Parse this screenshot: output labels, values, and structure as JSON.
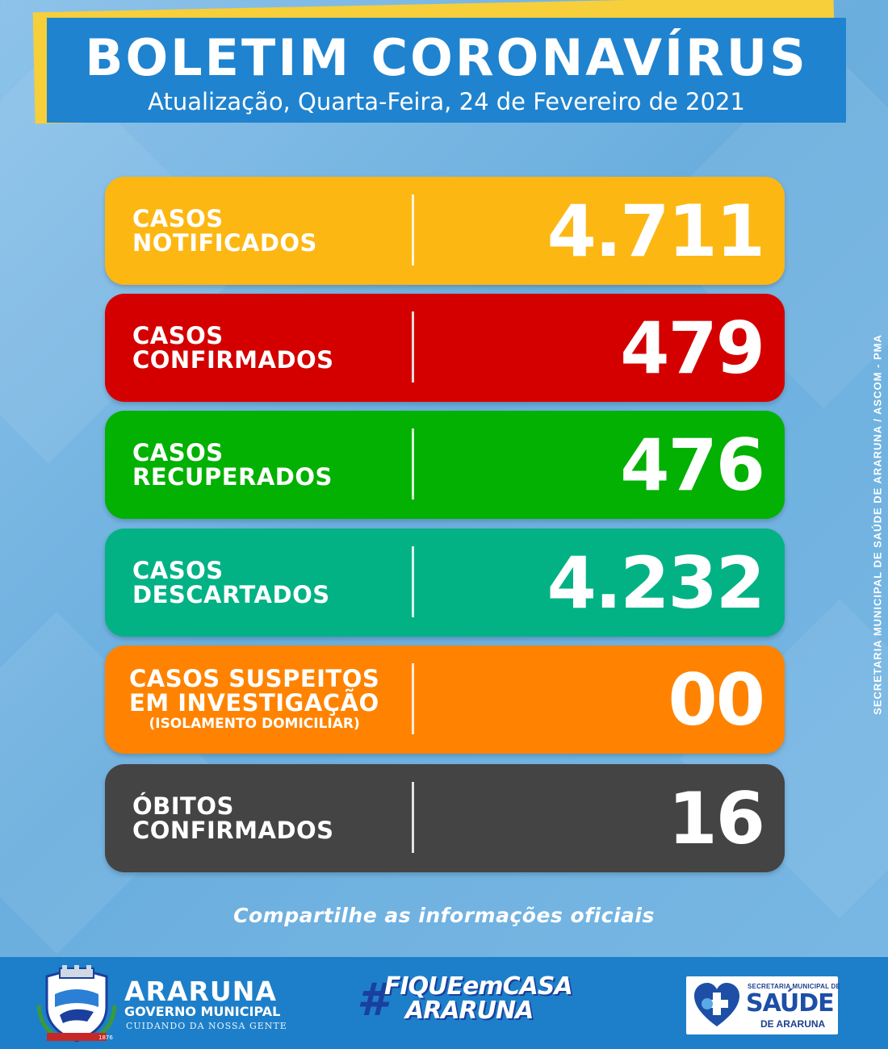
{
  "header": {
    "title": "BOLETIM CORONAVÍRUS",
    "subtitle": "Atualização, Quarta-Feira, 24 de Fevereiro de 2021"
  },
  "cards": [
    {
      "label_line1": "CASOS",
      "label_line2": "NOTIFICADOS",
      "note": "",
      "value": "4.711",
      "color": "#fdb713"
    },
    {
      "label_line1": "CASOS",
      "label_line2": "CONFIRMADOS",
      "note": "",
      "value": "479",
      "color": "#d40000"
    },
    {
      "label_line1": "CASOS",
      "label_line2": "RECUPERADOS",
      "note": "",
      "value": "476",
      "color": "#02b102"
    },
    {
      "label_line1": "CASOS",
      "label_line2": "DESCARTADOS",
      "note": "",
      "value": "4.232",
      "color": "#02b285"
    },
    {
      "label_line1": "CASOS SUSPEITOS",
      "label_line2": "EM INVESTIGAÇÃO",
      "note": "(ISOLAMENTO DOMICILIAR)",
      "value": "00",
      "color": "#ff8300"
    },
    {
      "label_line1": "ÓBITOS",
      "label_line2": "CONFIRMADOS",
      "note": "",
      "value": "16",
      "color": "#444444"
    }
  ],
  "credit": "SECRETARIA MUNICIPAL DE SAÚDE DE ARARUNA / ASCOM - PMA",
  "share_text": "Compartilhe as informações oficiais",
  "footer": {
    "city": "ARARUNA",
    "government": "GOVERNO MUNICIPAL",
    "slogan": "CUIDANDO DA NOSSA GENTE",
    "crest_years": "1876",
    "hashtag_symbol": "#",
    "hashtag_line1": "FIQUEemCASA",
    "hashtag_line2": "ARARUNA",
    "health_top": "SECRETARIA MUNICIPAL DE",
    "health_main": "SAÚDE",
    "health_bottom": "DE ARARUNA"
  }
}
